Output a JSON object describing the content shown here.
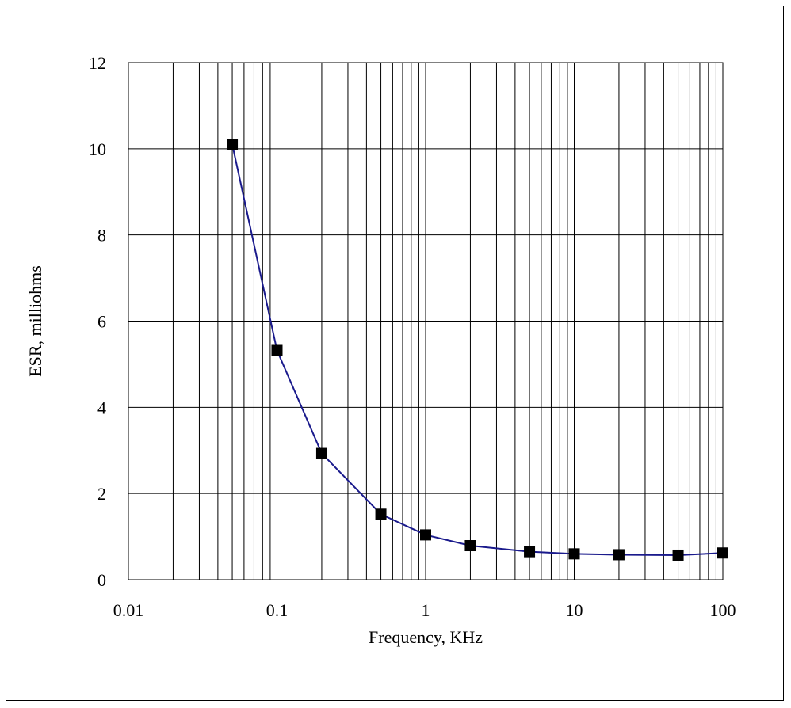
{
  "chart_data": {
    "type": "line",
    "title": "",
    "xlabel": "Frequency, KHz",
    "ylabel": "ESR, milliohms",
    "x_scale": "log",
    "xlim": [
      0.01,
      100
    ],
    "ylim": [
      0,
      12
    ],
    "x_ticks": [
      {
        "value": 0.01,
        "label": "0.01"
      },
      {
        "value": 0.1,
        "label": "0.1"
      },
      {
        "value": 1,
        "label": "1"
      },
      {
        "value": 10,
        "label": "10"
      },
      {
        "value": 100,
        "label": "100"
      }
    ],
    "y_ticks": [
      {
        "value": 0,
        "label": "0"
      },
      {
        "value": 2,
        "label": "2"
      },
      {
        "value": 4,
        "label": "4"
      },
      {
        "value": 6,
        "label": "6"
      },
      {
        "value": 8,
        "label": "8"
      },
      {
        "value": 10,
        "label": "10"
      },
      {
        "value": 12,
        "label": "12"
      }
    ],
    "grid": true,
    "series": [
      {
        "color": "#1a1a8c",
        "marker": "square",
        "marker_color": "#000000",
        "points": [
          {
            "x": 0.05,
            "y": 10.1
          },
          {
            "x": 0.1,
            "y": 5.32
          },
          {
            "x": 0.2,
            "y": 2.93
          },
          {
            "x": 0.5,
            "y": 1.52
          },
          {
            "x": 1,
            "y": 1.04
          },
          {
            "x": 2,
            "y": 0.79
          },
          {
            "x": 5,
            "y": 0.65
          },
          {
            "x": 10,
            "y": 0.6
          },
          {
            "x": 20,
            "y": 0.58
          },
          {
            "x": 50,
            "y": 0.57
          },
          {
            "x": 100,
            "y": 0.62
          }
        ]
      }
    ]
  }
}
